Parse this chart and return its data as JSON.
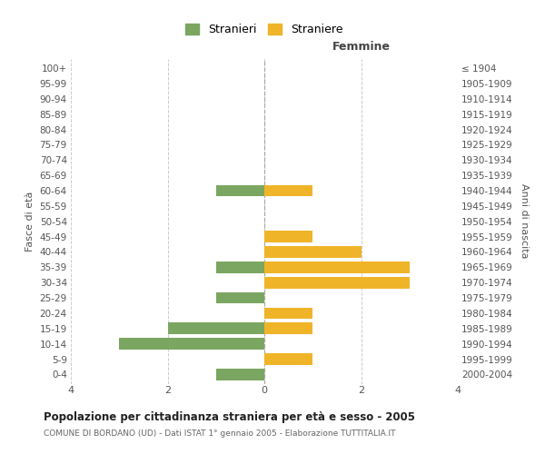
{
  "age_groups": [
    "0-4",
    "5-9",
    "10-14",
    "15-19",
    "20-24",
    "25-29",
    "30-34",
    "35-39",
    "40-44",
    "45-49",
    "50-54",
    "55-59",
    "60-64",
    "65-69",
    "70-74",
    "75-79",
    "80-84",
    "85-89",
    "90-94",
    "95-99",
    "100+"
  ],
  "birth_years": [
    "2000-2004",
    "1995-1999",
    "1990-1994",
    "1985-1989",
    "1980-1984",
    "1975-1979",
    "1970-1974",
    "1965-1969",
    "1960-1964",
    "1955-1959",
    "1950-1954",
    "1945-1949",
    "1940-1944",
    "1935-1939",
    "1930-1934",
    "1925-1929",
    "1920-1924",
    "1915-1919",
    "1910-1914",
    "1905-1909",
    "≤ 1904"
  ],
  "males": [
    1,
    0,
    3,
    2,
    0,
    1,
    0,
    1,
    0,
    0,
    0,
    0,
    1,
    0,
    0,
    0,
    0,
    0,
    0,
    0,
    0
  ],
  "females": [
    0,
    1,
    0,
    1,
    1,
    0,
    3,
    3,
    2,
    1,
    0,
    0,
    1,
    0,
    0,
    0,
    0,
    0,
    0,
    0,
    0
  ],
  "male_color": "#7aa661",
  "female_color": "#f0b429",
  "title": "Popolazione per cittadinanza straniera per età e sesso - 2005",
  "subtitle": "COMUNE DI BORDANO (UD) - Dati ISTAT 1° gennaio 2005 - Elaborazione TUTTITALIA.IT",
  "xlabel_right": "Femmine",
  "ylabel_left": "Fasce di età",
  "ylabel_right": "Anni di nascita",
  "legend_male": "Stranieri",
  "legend_female": "Straniere",
  "xlim": 4,
  "background_color": "#ffffff",
  "grid_color": "#cccccc",
  "bar_height": 0.75
}
